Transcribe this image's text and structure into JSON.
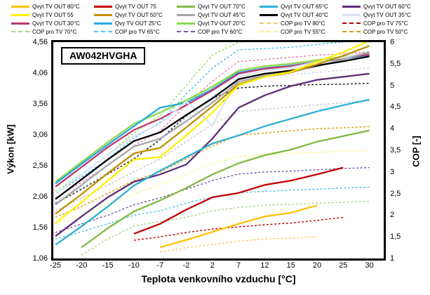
{
  "page": {
    "background": "#FFFFFF"
  },
  "chart_data": {
    "type": "line",
    "title": "AW042HVGHA",
    "x_axis": {
      "label": "Teplota venkovního vzduchu [°C]",
      "tick_labels": [
        "-25",
        "-20",
        "-15",
        "-10",
        "-7",
        "-2",
        "2",
        "7",
        "12",
        "15",
        "20",
        "25",
        "30"
      ]
    },
    "y_left": {
      "label": "Výkon [kW]",
      "tick_labels": [
        "4,56",
        "4,06",
        "3,56",
        "3,06",
        "2,56",
        "2,06",
        "1,56",
        "1,06"
      ],
      "min": 1.06,
      "max": 4.56
    },
    "y_right": {
      "label": "COP [-]",
      "tick_labels": [
        "6",
        "5,5",
        "5",
        "4,5",
        "4",
        "3,5",
        "3",
        "2,5",
        "2",
        "1,5",
        "1"
      ],
      "min": 1,
      "max": 6
    },
    "grid": false,
    "legend_position": "top",
    "categories": [
      -25,
      -20,
      -15,
      -10,
      -7,
      -2,
      2,
      7,
      12,
      15,
      20,
      25,
      30
    ],
    "series": [
      {
        "id": "cop_tv_20",
        "axis": "COP",
        "color": "#97DB55",
        "dash": true,
        "values": [
          2.55,
          2.95,
          3.4,
          3.9,
          4.3,
          5.0,
          5.7,
          6.0,
          6.05,
          6.05,
          6.05,
          null,
          null
        ]
      },
      {
        "id": "cop_tv_25",
        "axis": "COP",
        "color": "#49BFE8",
        "dash": true,
        "values": [
          2.5,
          2.88,
          3.3,
          3.78,
          4.15,
          4.8,
          5.4,
          5.82,
          5.85,
          5.88,
          5.95,
          6.0,
          null
        ]
      },
      {
        "id": "cop_tv_30",
        "axis": "COP",
        "color": "#E87DA4",
        "dash": true,
        "values": [
          2.4,
          2.76,
          3.15,
          3.6,
          3.95,
          4.55,
          5.1,
          5.55,
          5.6,
          5.65,
          5.7,
          5.73,
          5.78
        ]
      },
      {
        "id": "cop_tv_35",
        "axis": "COP",
        "color": "#CBD6E8",
        "dash": true,
        "values": [
          2.3,
          2.64,
          3.0,
          3.4,
          3.7,
          4.25,
          4.75,
          5.1,
          5.2,
          5.25,
          5.3,
          5.35,
          5.4
        ]
      },
      {
        "id": "cop_tv_40",
        "axis": "COP",
        "color": "#1A1A1A",
        "dash": true,
        "values": [
          2.27,
          2.6,
          2.95,
          3.3,
          3.75,
          4.3,
          4.7,
          4.94,
          4.98,
          5.0,
          5.02,
          5.03,
          5.05
        ]
      },
      {
        "id": "cop_tv_45",
        "axis": "COP",
        "color": "#C6C6C6",
        "dash": true,
        "values": [
          2.1,
          2.4,
          2.7,
          3.0,
          3.3,
          3.7,
          4.1,
          4.4,
          4.45,
          4.5,
          4.55,
          4.6,
          4.65
        ]
      },
      {
        "id": "cop_tv_50",
        "label": "COP pro TV 50°C",
        "axis": "COP",
        "color": "#D79B00",
        "dash": true,
        "values": [
          1.95,
          2.2,
          2.5,
          2.8,
          3.0,
          3.3,
          3.6,
          3.85,
          3.9,
          3.95,
          4.0,
          4.02,
          4.05
        ]
      },
      {
        "id": "cop_tv_55",
        "label": "COP pro TV 55°C",
        "axis": "COP",
        "color": "#FBF387",
        "dash": true,
        "values": [
          1.8,
          2.0,
          2.25,
          2.5,
          2.7,
          2.95,
          3.2,
          3.35,
          3.4,
          3.42,
          3.45,
          3.48,
          3.5
        ]
      },
      {
        "id": "cop_tv_60",
        "label": "COP pro TV 60°C",
        "axis": "COP",
        "color": "#6F5BA7",
        "dash": true,
        "values": [
          1.6,
          1.8,
          2.0,
          2.24,
          2.4,
          2.6,
          2.8,
          2.95,
          3.0,
          3.02,
          3.05,
          3.08,
          3.1
        ]
      },
      {
        "id": "cop_tv_65",
        "label": "COP pro TV 65°C",
        "axis": "COP",
        "color": "#55C1E9",
        "dash": true,
        "values": [
          1.45,
          1.62,
          1.8,
          2.0,
          2.1,
          2.28,
          2.42,
          2.52,
          2.55,
          2.58,
          2.6,
          2.63,
          2.65
        ]
      },
      {
        "id": "cop_tv_70",
        "label": "COP pro TV 70°C",
        "axis": "COP",
        "color": "#A9D18E",
        "dash": true,
        "values": [
          null,
          1.08,
          1.45,
          1.75,
          1.85,
          1.95,
          2.1,
          2.18,
          2.23,
          2.25,
          2.28,
          2.3,
          2.32
        ]
      },
      {
        "id": "cop_tv_75",
        "label": "COP pro TV 75°C",
        "axis": "COP",
        "color": "#C00000",
        "dash": true,
        "values": [
          null,
          null,
          null,
          1.42,
          1.5,
          1.6,
          1.68,
          1.73,
          1.78,
          1.82,
          1.88,
          1.95,
          null
        ]
      },
      {
        "id": "cop_tv_80",
        "label": "COP pro TV 80°C",
        "axis": "COP",
        "color": "#F6C669",
        "dash": true,
        "values": [
          null,
          null,
          null,
          null,
          1.15,
          1.25,
          1.32,
          1.4,
          1.45,
          1.47,
          1.5,
          null,
          null
        ]
      },
      {
        "id": "qvyt_tv_20",
        "label": "Qvyt TV OUT 20°C",
        "axis": "kW",
        "color": "#8CD94A",
        "dash": false,
        "values": [
          2.3,
          2.62,
          2.94,
          3.24,
          3.42,
          3.62,
          3.84,
          4.1,
          4.17,
          4.21,
          4.27,
          4.32,
          4.38
        ]
      },
      {
        "id": "qvyt_tv_25",
        "label": "Qvy TV OUT 25°C",
        "axis": "kW",
        "color": "#27AAE1",
        "dash": false,
        "values": [
          2.27,
          2.59,
          2.9,
          3.2,
          3.5,
          3.58,
          3.8,
          4.07,
          4.14,
          4.18,
          4.24,
          4.29,
          4.35
        ]
      },
      {
        "id": "qvyt_tv_30",
        "label": "Qvyt TV OUT 30°C",
        "axis": "kW",
        "color": "#C0376F",
        "dash": false,
        "values": [
          2.22,
          2.54,
          2.86,
          3.14,
          3.32,
          3.54,
          3.78,
          4.05,
          4.13,
          4.17,
          4.24,
          4.3,
          4.36
        ]
      },
      {
        "id": "qvyt_tv_35",
        "label": "Qvyt TV OUT 35°C",
        "axis": "kW",
        "color": "#D9E2F1",
        "dash": false,
        "values": [
          2.1,
          2.42,
          2.74,
          3.04,
          3.24,
          3.6,
          3.21,
          4.0,
          4.1,
          4.15,
          4.24,
          4.31,
          4.4
        ]
      },
      {
        "id": "qvyt_tv_45",
        "label": "Qvyt TV OUT 45°C",
        "axis": "kW",
        "color": "#A6A6A6",
        "dash": false,
        "values": [
          1.93,
          2.25,
          2.57,
          2.87,
          3.0,
          3.28,
          3.58,
          3.92,
          4.02,
          4.08,
          4.17,
          4.28,
          4.4
        ]
      },
      {
        "id": "qvyt_tv_40",
        "label": "Qvyt TV OUT 40°C",
        "axis": "kW",
        "color": "#000000",
        "dash": false,
        "values": [
          2.02,
          2.34,
          2.66,
          2.96,
          3.1,
          3.38,
          3.65,
          3.96,
          4.05,
          4.1,
          4.18,
          4.25,
          4.33
        ]
      },
      {
        "id": "qvyt_tv_50",
        "label": "Qvyt TV OUT 50°C",
        "axis": "kW",
        "color": "#BF9000",
        "dash": false,
        "values": [
          1.78,
          2.1,
          2.44,
          2.76,
          2.85,
          3.18,
          3.52,
          3.88,
          4.0,
          4.07,
          4.2,
          4.34,
          4.5
        ]
      },
      {
        "id": "qvyt_tv_55",
        "label": "Qvyt TV OUT 55",
        "axis": "kW",
        "color": "#FFF100",
        "dash": false,
        "values": [
          1.63,
          1.97,
          2.32,
          2.66,
          2.7,
          3.05,
          3.42,
          3.86,
          4.0,
          4.08,
          4.24,
          4.4,
          4.58
        ]
      },
      {
        "id": "qvyt_tv_60",
        "label": "Qvyt TV OUT 60°C",
        "axis": "kW",
        "color": "#5E2D79",
        "dash": false,
        "values": [
          1.42,
          1.74,
          2.05,
          2.3,
          2.42,
          2.58,
          3.0,
          3.5,
          3.7,
          3.85,
          3.95,
          4.0,
          4.05
        ]
      },
      {
        "id": "qvyt_tv_65",
        "label": "Qvyt TV OUT 65°C",
        "axis": "kW",
        "color": "#2EAFD4",
        "dash": false,
        "values": [
          1.28,
          1.58,
          1.9,
          2.24,
          2.48,
          2.7,
          2.92,
          3.05,
          3.2,
          3.32,
          3.44,
          3.54,
          3.63
        ]
      },
      {
        "id": "qvyt_tv_70",
        "label": "Qvyt TV OUT 70°C",
        "axis": "kW",
        "color": "#7DBB42",
        "dash": false,
        "values": [
          null,
          1.24,
          1.55,
          1.82,
          2.0,
          2.2,
          2.42,
          2.6,
          2.73,
          2.82,
          2.95,
          3.04,
          3.13
        ]
      },
      {
        "id": "qvyt_tv_75",
        "label": "Qvyt TV OUT 75",
        "axis": "kW",
        "color": "#C00000",
        "dash": false,
        "values": [
          null,
          null,
          null,
          1.46,
          1.62,
          1.85,
          2.05,
          2.12,
          2.25,
          2.32,
          2.42,
          2.53,
          null
        ]
      },
      {
        "id": "qvyt_tv_80",
        "label": "Qvyt TV OUT 80°C",
        "axis": "kW",
        "color": "#FFC000",
        "dash": false,
        "values": [
          null,
          null,
          null,
          null,
          1.24,
          1.36,
          1.49,
          1.62,
          1.74,
          1.8,
          1.92,
          null,
          null
        ]
      }
    ],
    "legend": {
      "items": [
        {
          "label": "Qvyt TV OUT 80°C",
          "color": "#FFC000",
          "dash": false
        },
        {
          "label": "Qvyt TV OUT 75",
          "color": "#C00000",
          "dash": false
        },
        {
          "label": "Qvyt TV OUT 70°C",
          "color": "#7DBB42",
          "dash": false
        },
        {
          "label": "Qvyt TV OUT 65°C",
          "color": "#2EAFD4",
          "dash": false
        },
        {
          "label": "Qvyt TV OUT 60°C",
          "color": "#5E2D79",
          "dash": false
        },
        {
          "label": "Qvyt TV OUT 55",
          "color": "#FFF100",
          "dash": false
        },
        {
          "label": "Qvyt TV OUT 50°C",
          "color": "#BF9000",
          "dash": false
        },
        {
          "label": "Qvyt TV OUT 45°C",
          "color": "#A6A6A6",
          "dash": false
        },
        {
          "label": "Qvyt TV OUT 40°C",
          "color": "#000000",
          "dash": false
        },
        {
          "label": "Qvyt TV OUT 35°C",
          "color": "#D9E2F1",
          "dash": false
        },
        {
          "label": "Qvyt TV OUT 30°C",
          "color": "#C0376F",
          "dash": false
        },
        {
          "label": "Qvy TV OUT 25°C",
          "color": "#27AAE1",
          "dash": false
        },
        {
          "label": "Qvyt TV OUT 20°C",
          "color": "#8CD94A",
          "dash": false
        },
        {
          "label": "COP pro TV 80°C",
          "color": "#F6C669",
          "dash": true
        },
        {
          "label": "COP pro TV 75°C",
          "color": "#C00000",
          "dash": true
        },
        {
          "label": "COP pro TV 70°C",
          "color": "#A9D18E",
          "dash": true
        },
        {
          "label": "COP pro TV 65°C",
          "color": "#55C1E9",
          "dash": true
        },
        {
          "label": "COP pro TV 60°C",
          "color": "#6F5BA7",
          "dash": true
        },
        {
          "label": "COP pro TV 55°C",
          "color": "#FBF387",
          "dash": true
        },
        {
          "label": "COP pro TV 50°C",
          "color": "#D79B00",
          "dash": true
        }
      ]
    }
  }
}
